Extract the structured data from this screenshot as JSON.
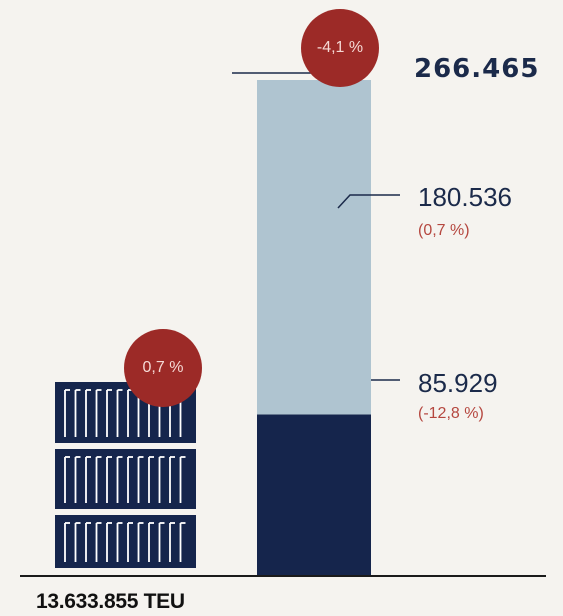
{
  "chart_data": [
    {
      "type": "bar",
      "series": [
        {
          "values": [
            13633855
          ]
        }
      ],
      "value_label": "13.633.855 TEU",
      "change_badge": "0,7 %",
      "icon": "stacked-containers-icon"
    },
    {
      "type": "bar",
      "stacked": true,
      "total": 266465,
      "total_label": "266.465",
      "total_change_badge": "-4,1 %",
      "series": [
        {
          "value": 85929,
          "label": "85.929",
          "change": "(-12,8 %)",
          "color": "#15254c"
        },
        {
          "value": 180536,
          "label": "180.536",
          "change": "(0,7 %)",
          "color": "#afc4d0"
        }
      ]
    }
  ],
  "colors": {
    "background": "#f5f3ef",
    "navy": "#15254c",
    "light_blue": "#afc4d0",
    "badge": "#9c2a27",
    "percent_text": "#b5473f"
  }
}
